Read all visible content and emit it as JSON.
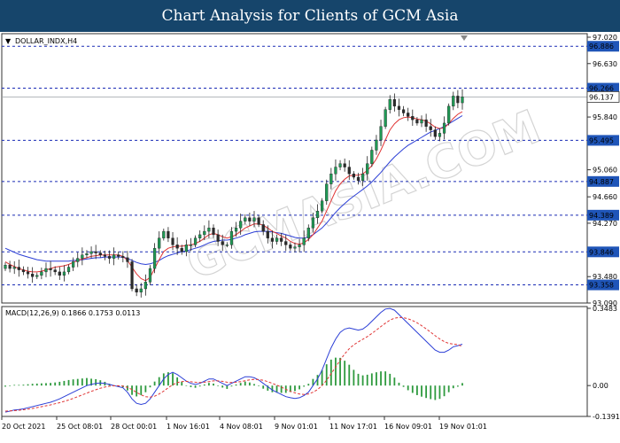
{
  "header": {
    "title": "Chart Analysis for Clients of GCM Asia"
  },
  "colors": {
    "bull": "#1f9a55",
    "bear": "#2b2b2b",
    "ma_fast": "#e03535",
    "ma_slow": "#2c3fd6",
    "level_line": "#1a2bb5",
    "level_box": "#1f55b8",
    "price_box": "#ffffff",
    "macd_line": "#2c3fd6",
    "signal_line": "#e03535",
    "histogram": "#2e9a3e"
  },
  "chart_data": [
    {
      "type": "candlestick",
      "symbol": "DOLLAR_INDX,H4",
      "ylim": [
        93.09,
        97.02
      ],
      "y_ticks": [
        "97.020",
        "96.630",
        "95.840",
        "95.060",
        "94.660",
        "94.270",
        "93.480",
        "93.090"
      ],
      "x_ticks": [
        "20 Oct 2021",
        "25 Oct 08:01",
        "28 Oct 00:01",
        "1 Nov 16:01",
        "4 Nov 08:01",
        "9 Nov 01:01",
        "11 Nov 17:01",
        "16 Nov 09:01",
        "19 Nov 01:01"
      ],
      "levels": [
        {
          "label": "96.886",
          "value": 96.886
        },
        {
          "label": "96.266",
          "value": 96.266
        },
        {
          "label": "95.495",
          "value": 95.495
        },
        {
          "label": "94.887",
          "value": 94.887
        },
        {
          "label": "94.389",
          "value": 94.389
        },
        {
          "label": "93.846",
          "value": 93.846
        },
        {
          "label": "93.358",
          "value": 93.358
        }
      ],
      "current_price": {
        "label": "96.137",
        "value": 96.137
      },
      "approx_closes": [
        93.65,
        93.6,
        93.62,
        93.58,
        93.55,
        93.52,
        93.48,
        93.5,
        93.55,
        93.6,
        93.58,
        93.55,
        93.5,
        93.55,
        93.62,
        93.7,
        93.75,
        93.8,
        93.82,
        93.85,
        93.83,
        93.8,
        93.78,
        93.75,
        93.8,
        93.78,
        93.76,
        93.7,
        93.3,
        93.25,
        93.3,
        93.4,
        93.6,
        93.9,
        94.05,
        94.15,
        94.05,
        93.95,
        93.9,
        93.85,
        93.95,
        93.95,
        94.05,
        94.1,
        94.15,
        94.2,
        94.1,
        94.0,
        93.95,
        93.95,
        94.15,
        94.2,
        94.3,
        94.35,
        94.3,
        94.35,
        94.25,
        94.15,
        94.05,
        94.0,
        94.05,
        94.0,
        93.95,
        93.9,
        93.92,
        93.95,
        94.05,
        94.2,
        94.35,
        94.45,
        94.6,
        94.85,
        95.0,
        95.1,
        95.15,
        95.1,
        95.0,
        94.95,
        94.9,
        95.0,
        95.15,
        95.35,
        95.5,
        95.7,
        95.95,
        96.1,
        96.0,
        95.95,
        95.9,
        95.85,
        95.8,
        95.75,
        95.8,
        95.7,
        95.65,
        95.55,
        95.6,
        95.75,
        96.0,
        96.15,
        96.05,
        96.137
      ],
      "ma_fast": [
        93.7,
        93.66,
        93.63,
        93.6,
        93.58,
        93.56,
        93.55,
        93.55,
        93.56,
        93.58,
        93.6,
        93.62,
        93.63,
        93.64,
        93.66,
        93.69,
        93.72,
        93.74,
        93.76,
        93.78,
        93.79,
        93.8,
        93.8,
        93.8,
        93.8,
        93.8,
        93.78,
        93.72,
        93.62,
        93.52,
        93.45,
        93.42,
        93.47,
        93.6,
        93.73,
        93.85,
        93.9,
        93.92,
        93.93,
        93.93,
        93.94,
        93.95,
        93.97,
        94.0,
        94.05,
        94.1,
        94.12,
        94.1,
        94.07,
        94.05,
        94.07,
        94.1,
        94.15,
        94.2,
        94.23,
        94.26,
        94.26,
        94.24,
        94.2,
        94.15,
        94.12,
        94.08,
        94.05,
        94.0,
        93.97,
        93.96,
        93.98,
        94.03,
        94.1,
        94.2,
        94.3,
        94.45,
        94.6,
        94.75,
        94.85,
        94.92,
        94.97,
        94.98,
        94.98,
        95.0,
        95.05,
        95.12,
        95.22,
        95.35,
        95.5,
        95.65,
        95.74,
        95.8,
        95.83,
        95.84,
        95.83,
        95.81,
        95.8,
        95.78,
        95.74,
        95.69,
        95.67,
        95.68,
        95.74,
        95.82,
        95.88,
        95.92
      ],
      "ma_slow": [
        93.9,
        93.87,
        93.84,
        93.81,
        93.79,
        93.77,
        93.75,
        93.73,
        93.72,
        93.71,
        93.71,
        93.71,
        93.71,
        93.71,
        93.71,
        93.72,
        93.72,
        93.73,
        93.74,
        93.75,
        93.76,
        93.76,
        93.77,
        93.77,
        93.77,
        93.77,
        93.77,
        93.75,
        93.72,
        93.69,
        93.67,
        93.66,
        93.67,
        93.69,
        93.72,
        93.76,
        93.79,
        93.81,
        93.83,
        93.85,
        93.86,
        93.88,
        93.9,
        93.92,
        93.95,
        93.98,
        94.0,
        94.01,
        94.02,
        94.02,
        94.03,
        94.05,
        94.07,
        94.1,
        94.12,
        94.14,
        94.15,
        94.15,
        94.15,
        94.14,
        94.13,
        94.12,
        94.1,
        94.08,
        94.06,
        94.05,
        94.05,
        94.07,
        94.1,
        94.15,
        94.2,
        94.27,
        94.35,
        94.43,
        94.5,
        94.56,
        94.62,
        94.67,
        94.72,
        94.77,
        94.82,
        94.88,
        94.95,
        95.02,
        95.1,
        95.18,
        95.25,
        95.31,
        95.37,
        95.42,
        95.46,
        95.5,
        95.54,
        95.58,
        95.62,
        95.64,
        95.67,
        95.7,
        95.74,
        95.78,
        95.82,
        95.86
      ]
    },
    {
      "type": "line",
      "title": "MACD(12,26,9) 0.1866 0.1753 0.0113",
      "ylim": [
        -0.1391,
        0.3483
      ],
      "y_ticks": [
        "0.3483",
        "0.00",
        "-0.1391"
      ],
      "macd": [
        -0.12,
        -0.115,
        -0.11,
        -0.108,
        -0.105,
        -0.1,
        -0.095,
        -0.09,
        -0.085,
        -0.08,
        -0.075,
        -0.068,
        -0.06,
        -0.05,
        -0.04,
        -0.03,
        -0.02,
        -0.01,
        0.0,
        0.005,
        0.01,
        0.012,
        0.01,
        0.005,
        0.0,
        -0.005,
        -0.01,
        -0.03,
        -0.06,
        -0.08,
        -0.085,
        -0.08,
        -0.06,
        -0.03,
        0.0,
        0.03,
        0.05,
        0.06,
        0.05,
        0.035,
        0.02,
        0.01,
        0.005,
        0.01,
        0.02,
        0.03,
        0.03,
        0.02,
        0.01,
        0.0,
        0.01,
        0.02,
        0.03,
        0.04,
        0.04,
        0.035,
        0.025,
        0.01,
        -0.005,
        -0.02,
        -0.03,
        -0.04,
        -0.05,
        -0.055,
        -0.058,
        -0.055,
        -0.045,
        -0.03,
        0.0,
        0.03,
        0.07,
        0.12,
        0.17,
        0.21,
        0.24,
        0.255,
        0.26,
        0.255,
        0.25,
        0.255,
        0.27,
        0.29,
        0.31,
        0.33,
        0.345,
        0.348,
        0.34,
        0.32,
        0.3,
        0.28,
        0.26,
        0.24,
        0.22,
        0.2,
        0.18,
        0.16,
        0.15,
        0.15,
        0.16,
        0.175,
        0.18,
        0.1866
      ],
      "signal": [
        -0.115,
        -0.114,
        -0.113,
        -0.111,
        -0.109,
        -0.106,
        -0.103,
        -0.099,
        -0.095,
        -0.091,
        -0.087,
        -0.082,
        -0.077,
        -0.071,
        -0.065,
        -0.058,
        -0.05,
        -0.042,
        -0.034,
        -0.026,
        -0.019,
        -0.012,
        -0.007,
        -0.003,
        -0.001,
        -0.001,
        -0.002,
        -0.008,
        -0.018,
        -0.031,
        -0.042,
        -0.05,
        -0.052,
        -0.048,
        -0.038,
        -0.025,
        -0.01,
        0.004,
        0.013,
        0.018,
        0.019,
        0.017,
        0.015,
        0.014,
        0.015,
        0.018,
        0.021,
        0.021,
        0.019,
        0.015,
        0.014,
        0.015,
        0.018,
        0.022,
        0.026,
        0.028,
        0.027,
        0.024,
        0.018,
        0.01,
        0.002,
        -0.007,
        -0.017,
        -0.026,
        -0.033,
        -0.038,
        -0.04,
        -0.038,
        -0.03,
        -0.018,
        0.0,
        0.024,
        0.053,
        0.084,
        0.115,
        0.143,
        0.166,
        0.184,
        0.197,
        0.209,
        0.221,
        0.235,
        0.25,
        0.266,
        0.281,
        0.295,
        0.304,
        0.307,
        0.306,
        0.301,
        0.293,
        0.283,
        0.27,
        0.256,
        0.241,
        0.225,
        0.21,
        0.198,
        0.19,
        0.187,
        0.185,
        0.1753
      ]
    }
  ]
}
